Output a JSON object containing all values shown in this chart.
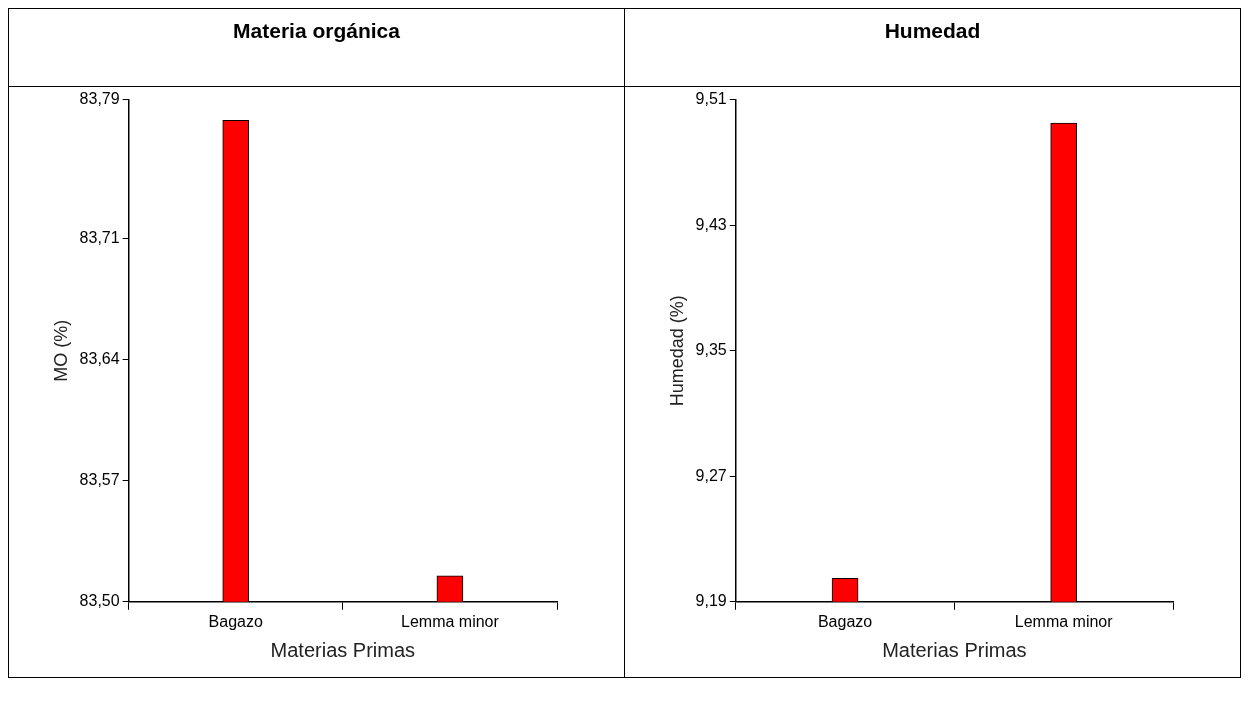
{
  "chart_data": [
    {
      "type": "bar",
      "title": "Materia orgánica",
      "xlabel": "Materias Primas",
      "ylabel": "MO (%)",
      "categories": [
        "Bagazo",
        "Lemma minor"
      ],
      "values": [
        83.778,
        83.515
      ],
      "color": "#ff0000",
      "ylim": [
        83.5,
        83.79
      ],
      "yticks": [
        {
          "value": 83.5,
          "label": "83,50"
        },
        {
          "value": 83.57,
          "label": "83,57"
        },
        {
          "value": 83.64,
          "label": "83,64"
        },
        {
          "value": 83.71,
          "label": "83,71"
        },
        {
          "value": 83.79,
          "label": "83,79"
        }
      ],
      "grid": false,
      "legend": false
    },
    {
      "type": "bar",
      "title": "Humedad",
      "xlabel": "Materias Primas",
      "ylabel": "Humedad (%)",
      "categories": [
        "Bagazo",
        "Lemma minor"
      ],
      "values": [
        9.205,
        9.495
      ],
      "color": "#ff0000",
      "ylim": [
        9.19,
        9.51
      ],
      "yticks": [
        {
          "value": 9.19,
          "label": "9,19"
        },
        {
          "value": 9.27,
          "label": "9,27"
        },
        {
          "value": 9.35,
          "label": "9,35"
        },
        {
          "value": 9.43,
          "label": "9,43"
        },
        {
          "value": 9.51,
          "label": "9,51"
        }
      ],
      "grid": false,
      "legend": false
    }
  ]
}
